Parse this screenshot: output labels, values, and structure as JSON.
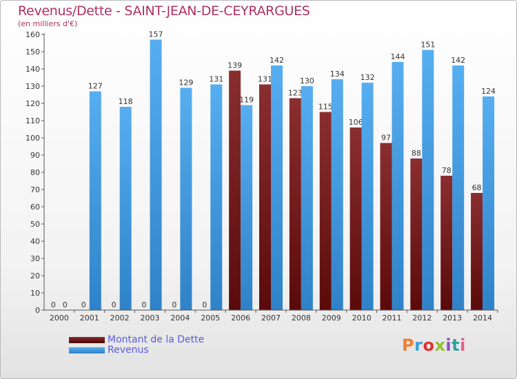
{
  "page": {
    "title": "Revenus/Dette - SAINT-JEAN-DE-CEYRARGUES",
    "unit": "(en milliers d'€)"
  },
  "logo": {
    "text": "Proxiti",
    "colors": [
      "#f08030",
      "#3aa0e0",
      "#e03030",
      "#90c030",
      "#8a50c0",
      "#30a0a0",
      "#e06090"
    ]
  },
  "legend": {
    "position": "bottom-left"
  },
  "colors": {
    "dette": "#6b1c1c",
    "revenus": "#3f97dc",
    "title": "#b03060",
    "legend_text": "#5a5ae0"
  },
  "chart_data": {
    "type": "bar",
    "categories": [
      "2000",
      "2001",
      "2002",
      "2003",
      "2004",
      "2005",
      "2006",
      "2007",
      "2008",
      "2009",
      "2010",
      "2011",
      "2012",
      "2013",
      "2014"
    ],
    "series": [
      {
        "name": "Montant de la Dette",
        "values": [
          0,
          0,
          0,
          0,
          0,
          0,
          139,
          131,
          123,
          115,
          106,
          97,
          88,
          78,
          68
        ]
      },
      {
        "name": "Revenus",
        "values": [
          0,
          127,
          118,
          157,
          129,
          131,
          119,
          142,
          130,
          134,
          132,
          144,
          151,
          142,
          124
        ]
      }
    ],
    "value_labels": [
      [
        "0",
        "0",
        "0",
        "0",
        "0",
        "0",
        "139",
        "131",
        "123",
        "115",
        "106",
        "97",
        "88",
        "78",
        "68"
      ],
      [
        "0",
        "127",
        "118",
        "157",
        "129",
        "131",
        "119",
        "142",
        "130",
        "134",
        "132",
        "144",
        "151",
        "142",
        "124"
      ]
    ],
    "yticks": [
      0,
      10,
      20,
      30,
      40,
      50,
      60,
      70,
      80,
      90,
      100,
      110,
      120,
      130,
      140,
      150,
      160
    ],
    "ylim": [
      0,
      160
    ],
    "grid": false
  }
}
